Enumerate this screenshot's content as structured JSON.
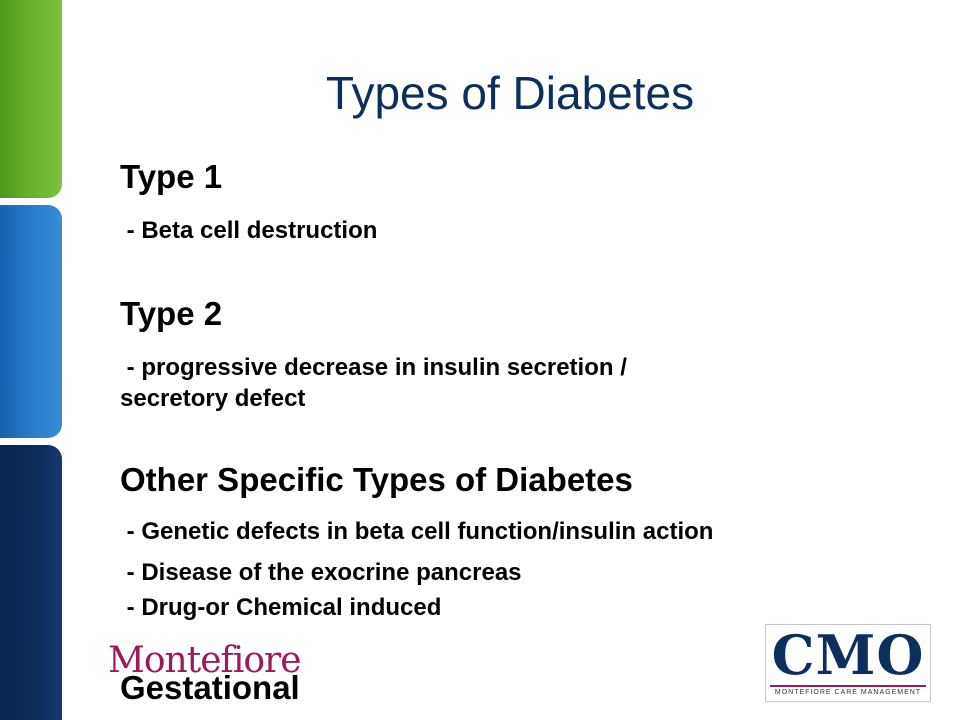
{
  "slide": {
    "title": "Types of Diabetes",
    "sections": [
      {
        "heading": "Type 1",
        "items": [
          " - Beta cell destruction"
        ]
      },
      {
        "heading": "Type 2",
        "items": [
          " - progressive decrease in insulin secretion /",
          "secretory defect"
        ]
      },
      {
        "heading": "Other Specific Types of Diabetes",
        "items": [
          " - Genetic defects in beta cell function/insulin action",
          " - Disease of the exocrine pancreas",
          " - Drug-or Chemical induced"
        ]
      },
      {
        "heading": "Gestational",
        "items": []
      }
    ]
  },
  "logos": {
    "montefiore": "Montefiore",
    "cmo": "CMO",
    "cmo_subtitle": "MONTEFIORE CARE MANAGEMENT"
  },
  "colors": {
    "title": "#0c2f5e",
    "tab_green": "#6cb52e",
    "tab_blue": "#2b7fcf",
    "tab_navy": "#0c2f60",
    "logo_magenta": "#9b1b5a"
  }
}
